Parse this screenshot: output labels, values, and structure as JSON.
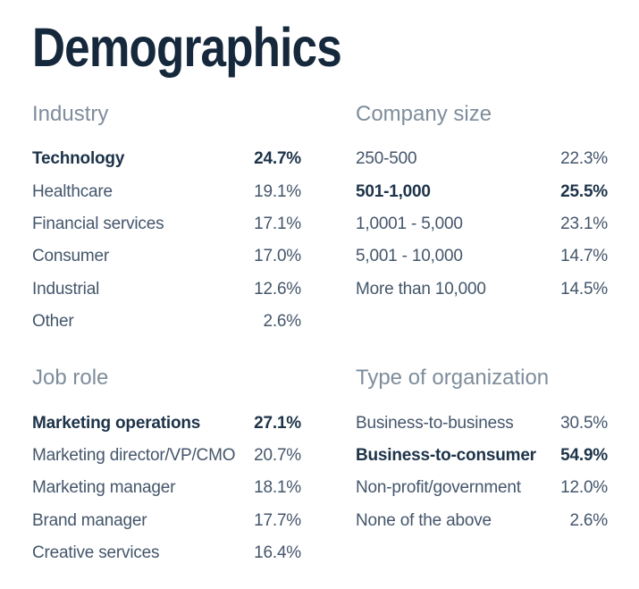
{
  "page_title": "Demographics",
  "colors": {
    "background": "#ffffff",
    "title_text": "#15283c",
    "section_header_text": "#7e8d9c",
    "row_text": "#44566b",
    "row_text_emphasis": "#1d3349"
  },
  "sections": [
    {
      "id": "industry",
      "title": "Industry",
      "rows": [
        {
          "label": "Technology",
          "value": "24.7%",
          "bold": true
        },
        {
          "label": "Healthcare",
          "value": "19.1%",
          "bold": false
        },
        {
          "label": "Financial services",
          "value": "17.1%",
          "bold": false
        },
        {
          "label": "Consumer",
          "value": "17.0%",
          "bold": false
        },
        {
          "label": "Industrial",
          "value": "12.6%",
          "bold": false
        },
        {
          "label": "Other",
          "value": "2.6%",
          "bold": false
        }
      ]
    },
    {
      "id": "company-size",
      "title": "Company size",
      "rows": [
        {
          "label": "250-500",
          "value": "22.3%",
          "bold": false
        },
        {
          "label": "501-1,000",
          "value": "25.5%",
          "bold": true
        },
        {
          "label": "1,0001 - 5,000",
          "value": "23.1%",
          "bold": false
        },
        {
          "label": "5,001 - 10,000",
          "value": "14.7%",
          "bold": false
        },
        {
          "label": "More than 10,000",
          "value": "14.5%",
          "bold": false
        }
      ]
    },
    {
      "id": "job-role",
      "title": "Job role",
      "rows": [
        {
          "label": "Marketing operations",
          "value": "27.1%",
          "bold": true
        },
        {
          "label": "Marketing director/VP/CMO",
          "value": "20.7%",
          "bold": false
        },
        {
          "label": "Marketing manager",
          "value": "18.1%",
          "bold": false
        },
        {
          "label": "Brand manager",
          "value": "17.7%",
          "bold": false
        },
        {
          "label": "Creative services",
          "value": "16.4%",
          "bold": false
        }
      ]
    },
    {
      "id": "type-of-organization",
      "title": "Type of organization",
      "rows": [
        {
          "label": "Business-to-business",
          "value": "30.5%",
          "bold": false
        },
        {
          "label": "Business-to-consumer",
          "value": "54.9%",
          "bold": true
        },
        {
          "label": "Non-profit/government",
          "value": "12.0%",
          "bold": false
        },
        {
          "label": "None of the above",
          "value": "2.6%",
          "bold": false
        }
      ]
    }
  ]
}
